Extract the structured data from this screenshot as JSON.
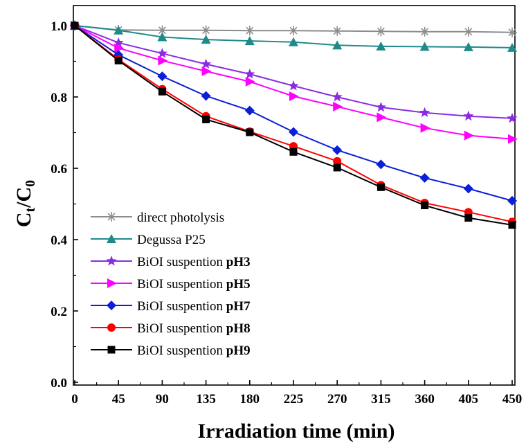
{
  "chart_data": {
    "type": "line",
    "xlabel": "Irradiation time (min)",
    "ylabel": {
      "main": "C",
      "sub1": "t",
      "slash": "/C",
      "sub2": "0"
    },
    "xlim": [
      0,
      450
    ],
    "ylim": [
      0.0,
      1.04
    ],
    "x": [
      0,
      45,
      90,
      135,
      180,
      225,
      270,
      315,
      360,
      405,
      450
    ],
    "xticks": [
      "0",
      "45",
      "90",
      "135",
      "180",
      "225",
      "270",
      "315",
      "360",
      "405",
      "450"
    ],
    "yticks": [
      "0.0",
      "0.2",
      "0.4",
      "0.6",
      "0.8",
      "1.0"
    ],
    "yticks_values": [
      0.0,
      0.2,
      0.4,
      0.6,
      0.8,
      1.0
    ],
    "grid": false,
    "legend_position": "bottom-left",
    "series": [
      {
        "name": "direct photolysis",
        "name_bold": "",
        "color": "#8c8c8c",
        "marker": "asterisk-icon",
        "values": [
          1.0,
          0.988,
          0.987,
          0.987,
          0.986,
          0.986,
          0.985,
          0.984,
          0.983,
          0.983,
          0.981
        ]
      },
      {
        "name": "Degussa P25",
        "name_bold": "",
        "color": "#1f8a8a",
        "marker": "triangle-icon",
        "values": [
          1.0,
          0.987,
          0.968,
          0.961,
          0.957,
          0.954,
          0.945,
          0.942,
          0.941,
          0.94,
          0.938
        ]
      },
      {
        "name": "BiOI suspention ",
        "name_bold": "pH3",
        "color": "#8b2be2",
        "marker": "star-icon",
        "values": [
          1.0,
          0.952,
          0.922,
          0.892,
          0.864,
          0.831,
          0.8,
          0.771,
          0.756,
          0.746,
          0.74
        ]
      },
      {
        "name": "BiOI suspention ",
        "name_bold": "pH5",
        "color": "#ff00ff",
        "marker": "triangle-right-icon",
        "values": [
          1.0,
          0.937,
          0.902,
          0.872,
          0.843,
          0.802,
          0.773,
          0.743,
          0.713,
          0.692,
          0.682
        ]
      },
      {
        "name": "BiOI suspention ",
        "name_bold": "pH7",
        "color": "#0a1fd6",
        "marker": "diamond-icon",
        "values": [
          1.0,
          0.918,
          0.858,
          0.803,
          0.762,
          0.702,
          0.651,
          0.611,
          0.573,
          0.543,
          0.509
        ]
      },
      {
        "name": "BiOI suspention ",
        "name_bold": "pH8",
        "color": "#ff0000",
        "marker": "circle-icon",
        "values": [
          1.0,
          0.905,
          0.822,
          0.746,
          0.703,
          0.662,
          0.62,
          0.553,
          0.503,
          0.477,
          0.45
        ]
      },
      {
        "name": "BiOI suspention ",
        "name_bold": "pH9",
        "color": "#000000",
        "marker": "square-icon",
        "values": [
          1.0,
          0.902,
          0.815,
          0.737,
          0.701,
          0.646,
          0.602,
          0.547,
          0.496,
          0.461,
          0.441
        ]
      }
    ]
  }
}
